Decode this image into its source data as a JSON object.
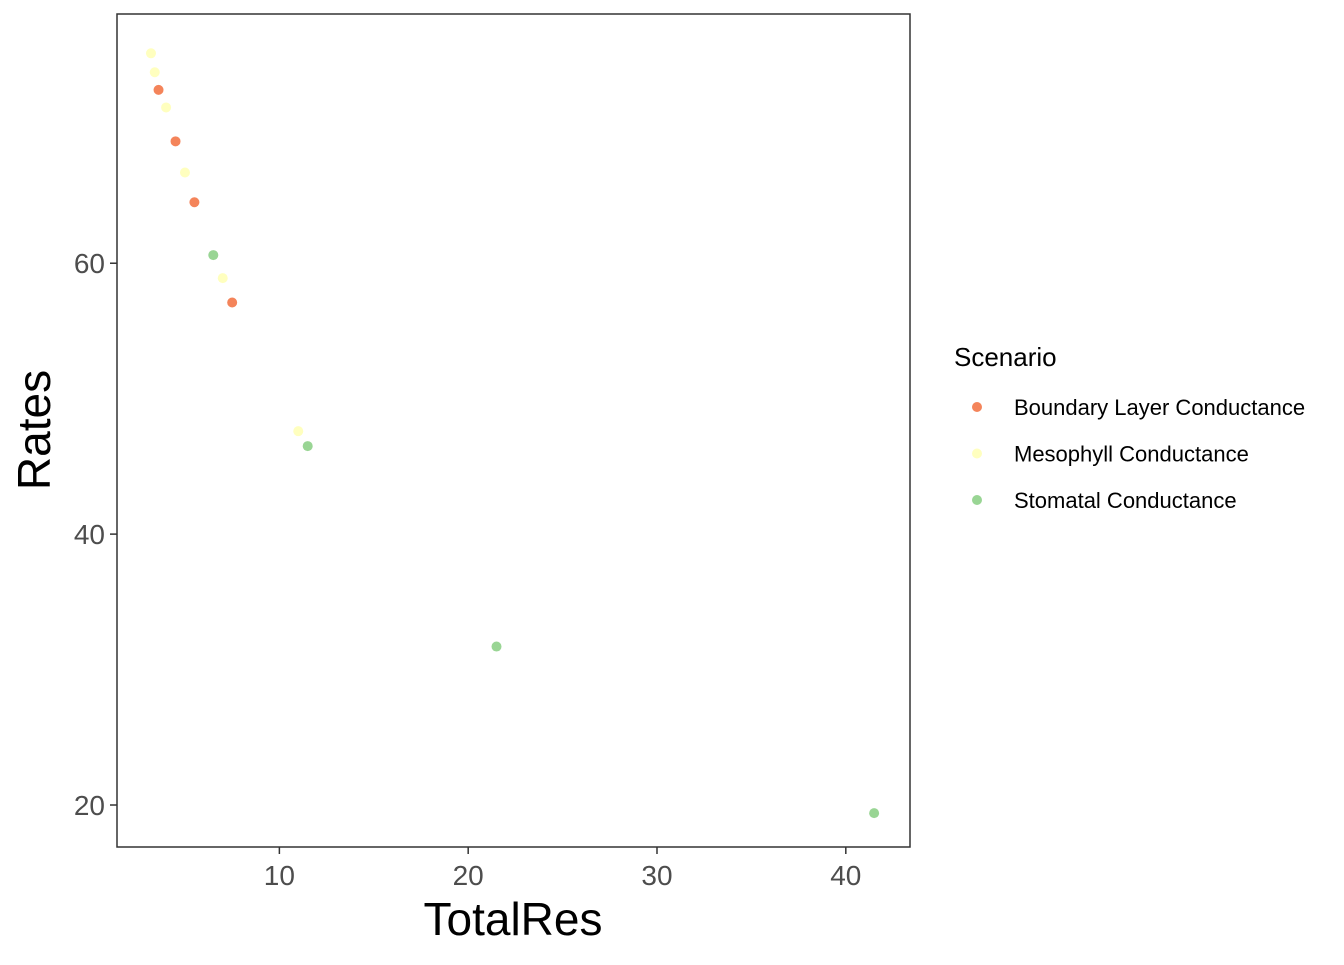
{
  "chart_data": {
    "type": "scatter",
    "title": "",
    "xlabel": "TotalRes",
    "ylabel": "Rates",
    "xlim": [
      1.4,
      43.4
    ],
    "ylim": [
      16.9,
      78.4
    ],
    "x_ticks": [
      10,
      20,
      30,
      40
    ],
    "y_ticks": [
      20,
      40,
      60
    ],
    "x_tick_labels": [
      "10",
      "20",
      "30",
      "40"
    ],
    "y_tick_labels": [
      "20",
      "40",
      "60"
    ],
    "grid": false,
    "legend": {
      "title": "Scenario",
      "position": "right"
    },
    "series": [
      {
        "name": "Boundary Layer Conductance",
        "color": "#F4845A",
        "points": [
          {
            "x": 3.6,
            "y": 72.8
          },
          {
            "x": 4.5,
            "y": 69.0
          },
          {
            "x": 5.5,
            "y": 64.5
          },
          {
            "x": 7.5,
            "y": 57.1
          }
        ]
      },
      {
        "name": "Mesophyll Conductance",
        "color": "#FFFFBF",
        "points": [
          {
            "x": 3.2,
            "y": 75.5
          },
          {
            "x": 3.4,
            "y": 74.1
          },
          {
            "x": 4.0,
            "y": 71.5
          },
          {
            "x": 5.0,
            "y": 66.7
          },
          {
            "x": 7.0,
            "y": 58.9
          },
          {
            "x": 11.0,
            "y": 47.6
          }
        ]
      },
      {
        "name": "Stomatal Conductance",
        "color": "#99D594",
        "points": [
          {
            "x": 6.5,
            "y": 60.6
          },
          {
            "x": 11.5,
            "y": 46.5
          },
          {
            "x": 21.5,
            "y": 31.7
          },
          {
            "x": 41.5,
            "y": 19.4
          }
        ]
      }
    ]
  }
}
